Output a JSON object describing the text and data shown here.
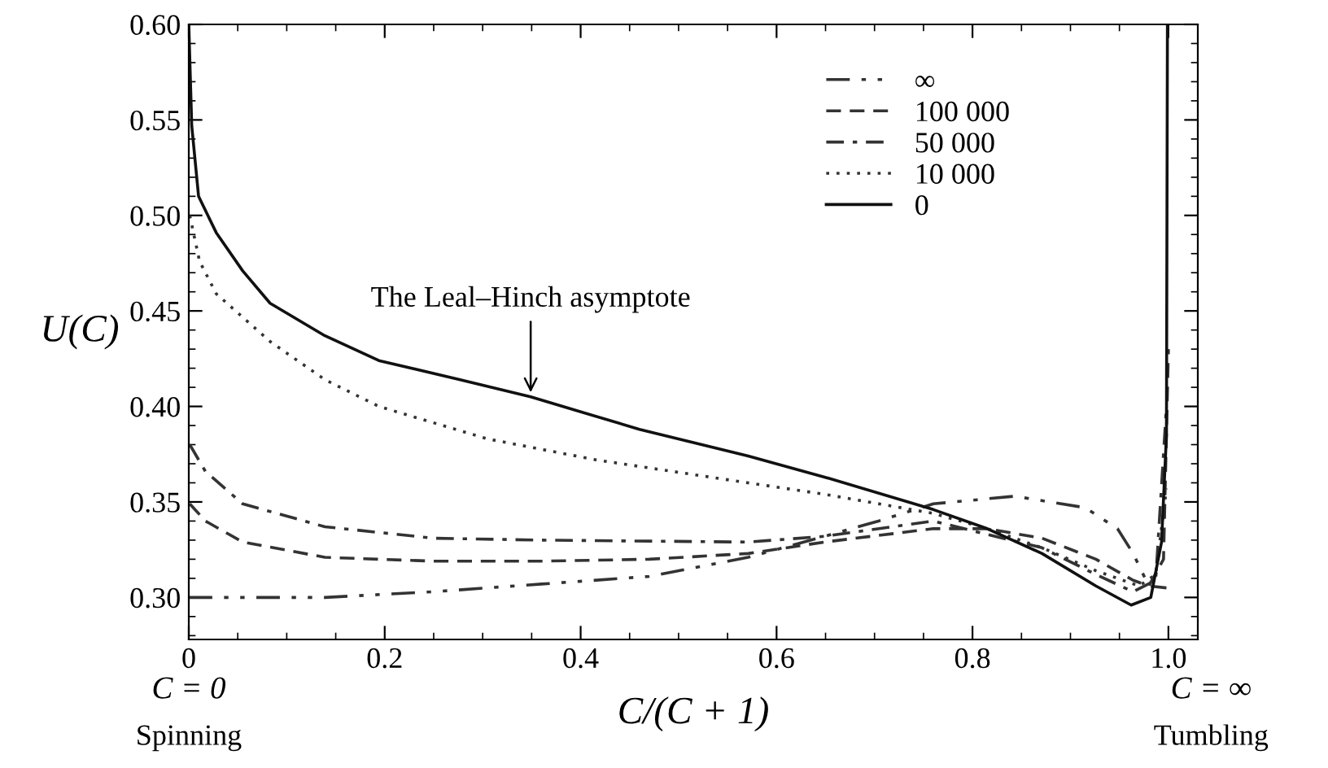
{
  "chart_data": {
    "type": "line",
    "xlabel": "C/(C + 1)",
    "ylabel": "U(C)",
    "xlim": [
      0,
      1.03
    ],
    "ylim": [
      0.278,
      0.6
    ],
    "xticks": [
      0,
      0.2,
      0.4,
      0.6,
      0.8,
      {
        "value": 1.0,
        "label": "1.0"
      }
    ],
    "yticks": [
      {
        "value": 0.3,
        "label": "0.30"
      },
      0.35,
      {
        "value": 0.4,
        "label": "0.40"
      },
      0.45,
      {
        "value": 0.5,
        "label": "0.50"
      },
      0.55,
      {
        "value": 0.6,
        "label": "0.60"
      }
    ],
    "grid": false,
    "legend": "top right",
    "marker": "none",
    "annotations": [
      {
        "text": "The Leal–Hinch asymptote",
        "x": 0.349,
        "y": 0.405
      },
      "C = 0",
      "Spinning",
      "C = ∞",
      "Tumbling"
    ],
    "series": [
      {
        "name": "∞",
        "color": "#333333",
        "line_style": "dashdotdot",
        "x": [
          0,
          0.139,
          0.25,
          0.36,
          0.47,
          0.571,
          0.649,
          0.704,
          0.76,
          0.843,
          0.915,
          0.948,
          0.964,
          0.98,
          0.998
        ],
        "values": [
          0.3,
          0.3,
          0.303,
          0.307,
          0.311,
          0.321,
          0.332,
          0.34,
          0.349,
          0.353,
          0.347,
          0.336,
          0.323,
          0.306,
          0.305
        ]
      },
      {
        "name": "100 000",
        "color": "#333333",
        "line_style": "dashed",
        "x": [
          0.001,
          0.017,
          0.055,
          0.139,
          0.25,
          0.36,
          0.47,
          0.571,
          0.649,
          0.76,
          0.815,
          0.871,
          0.926,
          0.964,
          0.98,
          0.995,
          1.0
        ],
        "values": [
          0.349,
          0.34,
          0.329,
          0.321,
          0.319,
          0.319,
          0.32,
          0.323,
          0.329,
          0.336,
          0.336,
          0.331,
          0.32,
          0.309,
          0.306,
          0.32,
          0.43
        ]
      },
      {
        "name": "50 000",
        "color": "#333333",
        "line_style": "dashdot",
        "x": [
          0.001,
          0.017,
          0.055,
          0.139,
          0.25,
          0.36,
          0.571,
          0.649,
          0.76,
          0.815,
          0.871,
          0.926,
          0.964,
          0.987,
          0.998
        ],
        "values": [
          0.38,
          0.366,
          0.349,
          0.337,
          0.331,
          0.33,
          0.329,
          0.332,
          0.34,
          0.333,
          0.326,
          0.312,
          0.303,
          0.309,
          0.4
        ]
      },
      {
        "name": "10 000",
        "color": "#333333",
        "line_style": "dotted",
        "x": [
          0.001,
          0.011,
          0.028,
          0.083,
          0.139,
          0.194,
          0.305,
          0.416,
          0.571,
          0.649,
          0.76,
          0.815,
          0.871,
          0.926,
          0.97,
          0.987,
          0.998
        ],
        "values": [
          0.5,
          0.476,
          0.459,
          0.434,
          0.414,
          0.4,
          0.383,
          0.372,
          0.36,
          0.354,
          0.344,
          0.336,
          0.326,
          0.314,
          0.306,
          0.312,
          0.357
        ]
      },
      {
        "name": "0",
        "color": "#111111",
        "line_style": "solid",
        "x": [
          0,
          0.003,
          0.01,
          0.028,
          0.055,
          0.083,
          0.139,
          0.194,
          0.277,
          0.349,
          0.46,
          0.571,
          0.649,
          0.76,
          0.815,
          0.871,
          0.926,
          0.962,
          0.982,
          0.993,
          0.998,
          0.999
        ],
        "values": [
          0.6,
          0.547,
          0.51,
          0.491,
          0.471,
          0.454,
          0.437,
          0.424,
          0.414,
          0.405,
          0.388,
          0.374,
          0.363,
          0.346,
          0.336,
          0.323,
          0.306,
          0.296,
          0.3,
          0.329,
          0.385,
          0.6
        ]
      }
    ]
  }
}
